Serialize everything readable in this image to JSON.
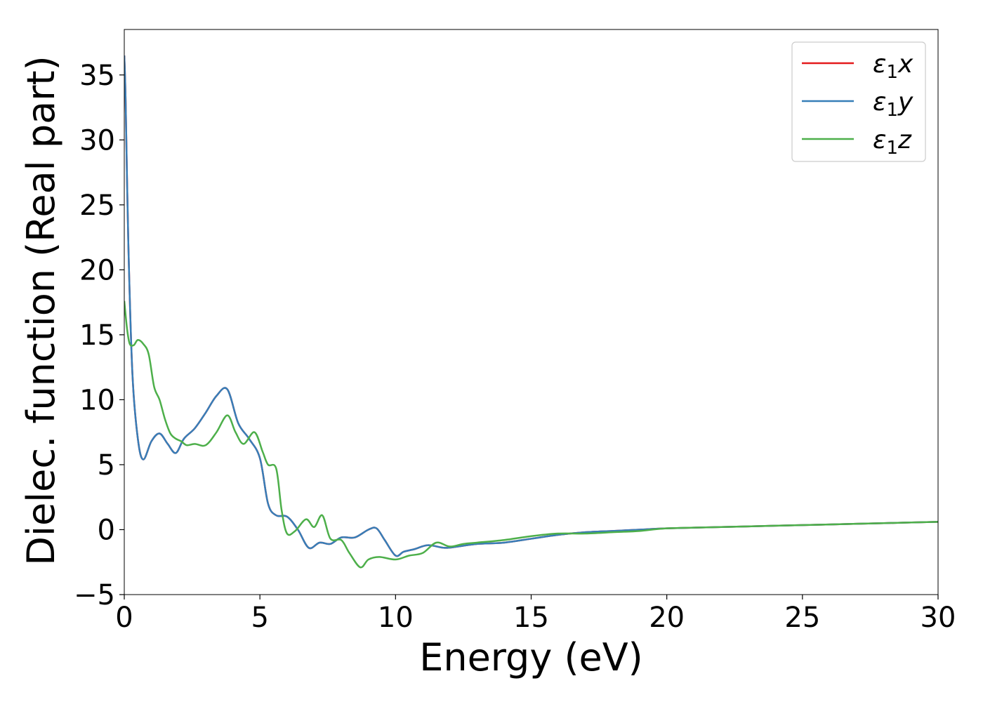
{
  "chart_data": {
    "type": "line",
    "xlabel": "Energy (eV)",
    "ylabel": "Dielec. function (Real part)",
    "xlim": [
      0,
      30
    ],
    "ylim": [
      -5,
      38.5
    ],
    "xticks": [
      0,
      5,
      10,
      15,
      20,
      25,
      30
    ],
    "yticks": [
      -5,
      0,
      5,
      10,
      15,
      20,
      25,
      30,
      35
    ],
    "xtick_labels": [
      "0",
      "5",
      "10",
      "15",
      "20",
      "25",
      "30"
    ],
    "ytick_labels": [
      "−5",
      "0",
      "5",
      "10",
      "15",
      "20",
      "25",
      "30",
      "35"
    ],
    "grid": false,
    "legend_position": "top-right",
    "series": [
      {
        "name": "ε₁x",
        "legend_main": "ε",
        "legend_sub": "1",
        "legend_var": "x",
        "color": "#e41a1c",
        "x": [
          0,
          0.05,
          0.15,
          0.3,
          0.5,
          0.7,
          1.0,
          1.3,
          1.6,
          1.9,
          2.2,
          2.6,
          3.0,
          3.4,
          3.8,
          4.2,
          4.6,
          5.0,
          5.3,
          5.6,
          6.0,
          6.4,
          6.8,
          7.2,
          7.6,
          8.0,
          8.5,
          9.0,
          9.3,
          9.6,
          10.0,
          10.3,
          10.7,
          11.2,
          11.8,
          12.3,
          13.0,
          14.0,
          15.0,
          16.0,
          17.0,
          18.0,
          19.0,
          20.0,
          22.0,
          24.0,
          26.0,
          28.0,
          30.0
        ],
        "values": [
          36.5,
          33.0,
          22.0,
          12.0,
          7.0,
          5.4,
          6.8,
          7.4,
          6.6,
          5.9,
          7.0,
          7.8,
          9.0,
          10.3,
          10.8,
          8.2,
          7.0,
          5.5,
          2.0,
          1.1,
          1.0,
          0.0,
          -1.4,
          -1.0,
          -1.1,
          -0.6,
          -0.6,
          0.0,
          0.1,
          -0.8,
          -2.0,
          -1.7,
          -1.5,
          -1.2,
          -1.4,
          -1.3,
          -1.1,
          -1.0,
          -0.7,
          -0.4,
          -0.2,
          -0.1,
          0.0,
          0.1,
          0.2,
          0.3,
          0.4,
          0.5,
          0.6
        ]
      },
      {
        "name": "ε₁y",
        "legend_main": "ε",
        "legend_sub": "1",
        "legend_var": "y",
        "color": "#377eb8",
        "x": [
          0,
          0.05,
          0.15,
          0.3,
          0.5,
          0.7,
          1.0,
          1.3,
          1.6,
          1.9,
          2.2,
          2.6,
          3.0,
          3.4,
          3.8,
          4.2,
          4.6,
          5.0,
          5.3,
          5.6,
          6.0,
          6.4,
          6.8,
          7.2,
          7.6,
          8.0,
          8.5,
          9.0,
          9.3,
          9.6,
          10.0,
          10.3,
          10.7,
          11.2,
          11.8,
          12.3,
          13.0,
          14.0,
          15.0,
          16.0,
          17.0,
          18.0,
          19.0,
          20.0,
          22.0,
          24.0,
          26.0,
          28.0,
          30.0
        ],
        "values": [
          36.5,
          33.0,
          22.0,
          12.0,
          7.0,
          5.4,
          6.8,
          7.4,
          6.6,
          5.9,
          7.0,
          7.8,
          9.0,
          10.3,
          10.8,
          8.2,
          7.0,
          5.5,
          2.0,
          1.1,
          1.0,
          0.0,
          -1.4,
          -1.0,
          -1.1,
          -0.6,
          -0.6,
          0.0,
          0.1,
          -0.8,
          -2.0,
          -1.7,
          -1.5,
          -1.2,
          -1.4,
          -1.3,
          -1.1,
          -1.0,
          -0.7,
          -0.4,
          -0.2,
          -0.1,
          0.0,
          0.1,
          0.2,
          0.3,
          0.4,
          0.5,
          0.6
        ]
      },
      {
        "name": "ε₁z",
        "legend_main": "ε",
        "legend_sub": "1",
        "legend_var": "z",
        "color": "#4daf4a",
        "x": [
          0,
          0.1,
          0.2,
          0.35,
          0.5,
          0.7,
          0.9,
          1.1,
          1.3,
          1.5,
          1.7,
          1.9,
          2.1,
          2.3,
          2.6,
          3.0,
          3.4,
          3.8,
          4.1,
          4.4,
          4.8,
          5.1,
          5.3,
          5.6,
          5.8,
          6.0,
          6.3,
          6.7,
          7.0,
          7.3,
          7.6,
          8.0,
          8.3,
          8.7,
          9.0,
          9.4,
          10.0,
          10.5,
          11.0,
          11.5,
          12.0,
          12.5,
          13.0,
          14.0,
          15.0,
          16.0,
          17.0,
          18.0,
          19.0,
          20.0,
          22.0,
          24.0,
          26.0,
          28.0,
          30.0
        ],
        "values": [
          17.6,
          15.5,
          14.3,
          14.2,
          14.6,
          14.3,
          13.5,
          11.0,
          10.0,
          8.5,
          7.4,
          7.0,
          6.8,
          6.5,
          6.6,
          6.5,
          7.5,
          8.8,
          7.5,
          6.6,
          7.5,
          6.0,
          5.0,
          4.7,
          1.5,
          -0.3,
          -0.1,
          0.8,
          0.2,
          1.1,
          -0.7,
          -0.8,
          -1.8,
          -2.9,
          -2.3,
          -2.1,
          -2.3,
          -2.0,
          -1.8,
          -1.0,
          -1.3,
          -1.1,
          -1.0,
          -0.8,
          -0.5,
          -0.3,
          -0.3,
          -0.2,
          -0.1,
          0.1,
          0.2,
          0.3,
          0.4,
          0.5,
          0.6
        ]
      }
    ]
  }
}
